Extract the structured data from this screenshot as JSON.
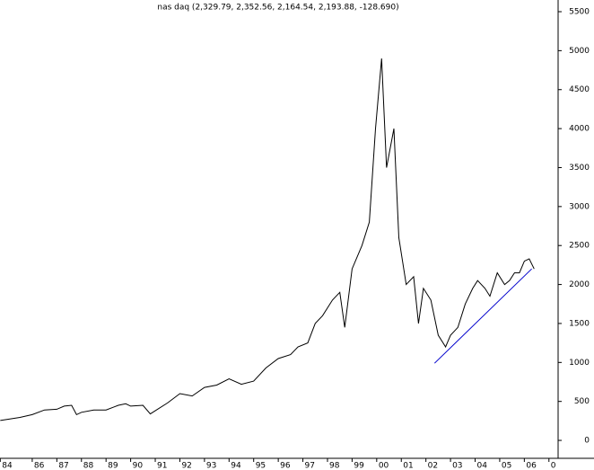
{
  "chart_data": {
    "type": "line",
    "title": "nas daq (2,329.79, 2,352.56, 2,164.54, 2,193.88, -128.690)",
    "series": [
      {
        "color": "#000000",
        "x": [
          1984.7,
          1985.0,
          1985.5,
          1986.0,
          1986.5,
          1987.0,
          1987.3,
          1987.6,
          1987.8,
          1988.0,
          1988.5,
          1989.0,
          1989.5,
          1989.8,
          1990.0,
          1990.5,
          1990.8,
          1991.0,
          1991.5,
          1992.0,
          1992.5,
          1993.0,
          1993.5,
          1994.0,
          1994.5,
          1995.0,
          1995.5,
          1996.0,
          1996.5,
          1996.8,
          1997.2,
          1997.5,
          1997.8,
          1998.2,
          1998.5,
          1998.7,
          1999.0,
          1999.4,
          1999.7,
          1999.95,
          2000.2,
          2000.4,
          2000.7,
          2000.9,
          2001.2,
          2001.5,
          2001.7,
          2001.9,
          2002.2,
          2002.5,
          2002.8,
          2003.0,
          2003.3,
          2003.6,
          2003.9,
          2004.1,
          2004.4,
          2004.6,
          2004.9,
          2005.2,
          2005.4,
          2005.6,
          2005.8,
          2006.0,
          2006.2,
          2006.4
        ],
        "values": [
          255,
          270,
          295,
          330,
          390,
          400,
          440,
          450,
          330,
          360,
          390,
          390,
          450,
          470,
          440,
          450,
          340,
          380,
          480,
          600,
          570,
          680,
          710,
          790,
          720,
          760,
          930,
          1050,
          1100,
          1200,
          1250,
          1500,
          1600,
          1800,
          1900,
          1450,
          2200,
          2500,
          2800,
          4000,
          4900,
          3500,
          4000,
          2600,
          2000,
          2100,
          1500,
          1950,
          1800,
          1350,
          1200,
          1350,
          1450,
          1750,
          1950,
          2050,
          1950,
          1850,
          2150,
          2000,
          2050,
          2150,
          2150,
          2300,
          2330,
          2200
        ]
      },
      {
        "color": "#0000cc",
        "x": [
          2002.35,
          2006.3
        ],
        "values": [
          990,
          2200
        ]
      }
    ],
    "xlim": [
      1984.69,
      2007.3
    ],
    "xticks": [
      {
        "value": 1984.7,
        "label": "84"
      },
      {
        "value": 1986,
        "label": "86"
      },
      {
        "value": 1987,
        "label": "87"
      },
      {
        "value": 1988,
        "label": "88"
      },
      {
        "value": 1989,
        "label": "89"
      },
      {
        "value": 1990,
        "label": "90"
      },
      {
        "value": 1991,
        "label": "91"
      },
      {
        "value": 1992,
        "label": "92"
      },
      {
        "value": 1993,
        "label": "93"
      },
      {
        "value": 1994,
        "label": "94"
      },
      {
        "value": 1995,
        "label": "95"
      },
      {
        "value": 1996,
        "label": "96"
      },
      {
        "value": 1997,
        "label": "97"
      },
      {
        "value": 1998,
        "label": "98"
      },
      {
        "value": 1999,
        "label": "99"
      },
      {
        "value": 2000,
        "label": "00"
      },
      {
        "value": 2001,
        "label": "01"
      },
      {
        "value": 2002,
        "label": "02"
      },
      {
        "value": 2003,
        "label": "03"
      },
      {
        "value": 2004,
        "label": "04"
      },
      {
        "value": 2005,
        "label": "05"
      },
      {
        "value": 2006,
        "label": "06"
      },
      {
        "value": 2007,
        "label": "0"
      }
    ],
    "ylim": [
      -230,
      5650
    ],
    "yticks": [
      0,
      500,
      1000,
      1500,
      2000,
      2500,
      3000,
      3500,
      4000,
      4500,
      5000,
      5500
    ]
  }
}
